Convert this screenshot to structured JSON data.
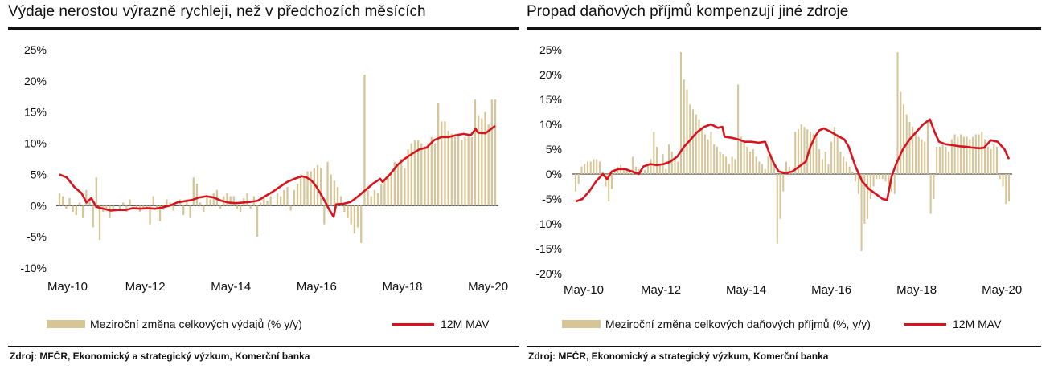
{
  "colors": {
    "bar": "#d6c596",
    "line": "#d7141e",
    "axis": "#888888",
    "text": "#111111"
  },
  "charts": [
    {
      "title": "Výdaje nerostou výrazně rychleji, než v předchozích měsících",
      "source": "Zdroj: MFČR, Ekonomický a strategický výzkum, Komerční banka",
      "legend": {
        "bar_label": "Meziroční změna celkových výdajů (% y/y)",
        "line_label": "12M MAV"
      }
    },
    {
      "title": "Propad daňových příjmů kompenzují jiné zdroje",
      "source": "Zdroj: MFČR, Ekonomický a strategický výzkum, Komerční banka",
      "legend": {
        "bar_label": "Meziroční změna celkových daňových příjmů (%, y/y)",
        "line_label": "12M MAV"
      }
    }
  ],
  "chart_data": [
    {
      "type": "bar",
      "title": "Výdaje nerostou výrazně rychleji, než v předchozích měsících",
      "x_ticks": [
        "May-10",
        "May-12",
        "May-14",
        "May-16",
        "May-18",
        "May-20"
      ],
      "y_ticks": [
        "25%",
        "20%",
        "15%",
        "10%",
        "5%",
        "0%",
        "-5%",
        "-10%"
      ],
      "ylim": [
        -10,
        25
      ],
      "y_tick_values": [
        25,
        20,
        15,
        10,
        5,
        0,
        -5,
        -10
      ],
      "x_range_months": [
        "May-10",
        "Jul-20"
      ],
      "series": [
        {
          "name": "Meziroční změna celkových výdajů (% y/y)",
          "kind": "bar",
          "values": [
            2.0,
            1.5,
            -0.5,
            1.2,
            -1.0,
            -1.5,
            0.5,
            -2.0,
            2.5,
            0.8,
            -3.5,
            4.5,
            -5.5,
            -1.0,
            -0.5,
            -2.0,
            -0.8,
            0.0,
            -0.5,
            0.5,
            -1.0,
            1.0,
            0.0,
            -0.5,
            -1.0,
            -0.3,
            -0.5,
            -3.0,
            1.5,
            -0.5,
            -2.5,
            -0.7,
            1.0,
            0.5,
            -0.8,
            0.0,
            1.0,
            -1.5,
            1.0,
            -2.0,
            4.5,
            3.5,
            0.5,
            -1.0,
            1.5,
            1.0,
            2.0,
            2.5,
            -0.5,
            1.5,
            2.0,
            1.5,
            1.5,
            -0.5,
            -1.0,
            1.2,
            2.0,
            -0.5,
            1.5,
            -5.0,
            0.5,
            1.2,
            0.8,
            1.5,
            0.0,
            2.0,
            1.5,
            2.5,
            3.0,
            -0.8,
            2.5,
            3.5,
            5.0,
            4.5,
            5.5,
            5.5,
            6.0,
            6.5,
            6.0,
            -3.0,
            7.0,
            5.0,
            4.0,
            3.0,
            1.5,
            -1.0,
            -2.0,
            -3.0,
            -4.5,
            -3.5,
            -6.0,
            21.0,
            2.5,
            1.5,
            2.5,
            2.0,
            3.5,
            4.0,
            5.0,
            5.5,
            7.0,
            6.5,
            7.5,
            6.0,
            9.0,
            10.0,
            10.5,
            10.5,
            10.0,
            9.5,
            10.0,
            11.0,
            10.0,
            16.5,
            13.5,
            13.5,
            12.0,
            11.5,
            11.0,
            11.5,
            10.5,
            11.0,
            11.5,
            11.0,
            17.0,
            14.5,
            14.0,
            15.0,
            13.0,
            17.0,
            17.0
          ]
        },
        {
          "name": "12M MAV",
          "kind": "line",
          "points": [
            [
              0,
              5.0
            ],
            [
              3,
              4.5
            ],
            [
              6,
              3.0
            ],
            [
              9,
              2.0
            ],
            [
              11,
              0.5
            ],
            [
              13,
              1.2
            ],
            [
              15,
              -0.2
            ],
            [
              18,
              -0.5
            ],
            [
              21,
              -0.8
            ],
            [
              24,
              -0.7
            ],
            [
              27,
              -0.7
            ],
            [
              30,
              -0.4
            ],
            [
              33,
              -0.5
            ],
            [
              36,
              -0.4
            ],
            [
              39,
              -0.5
            ],
            [
              42,
              -0.3
            ],
            [
              45,
              0.0
            ],
            [
              48,
              0.5
            ],
            [
              51,
              0.7
            ],
            [
              54,
              0.9
            ],
            [
              57,
              1.3
            ],
            [
              60,
              1.5
            ],
            [
              63,
              1.3
            ],
            [
              66,
              0.8
            ],
            [
              69,
              0.5
            ],
            [
              72,
              0.4
            ],
            [
              75,
              0.5
            ],
            [
              78,
              0.6
            ],
            [
              81,
              0.8
            ],
            [
              84,
              1.5
            ],
            [
              87,
              2.2
            ],
            [
              90,
              3.0
            ],
            [
              93,
              3.8
            ],
            [
              96,
              4.3
            ],
            [
              99,
              4.7
            ],
            [
              101,
              4.5
            ],
            [
              103,
              4.0
            ],
            [
              105,
              3.0
            ],
            [
              108,
              1.0
            ],
            [
              110,
              -0.5
            ],
            [
              112,
              -1.8
            ],
            [
              113,
              0.2
            ],
            [
              116,
              0.3
            ],
            [
              119,
              0.6
            ],
            [
              122,
              1.5
            ],
            [
              125,
              2.5
            ],
            [
              128,
              3.5
            ],
            [
              131,
              4.3
            ],
            [
              132,
              3.8
            ],
            [
              135,
              5.0
            ],
            [
              138,
              6.5
            ],
            [
              141,
              7.5
            ],
            [
              144,
              8.3
            ],
            [
              147,
              9.0
            ],
            [
              150,
              9.3
            ],
            [
              153,
              10.5
            ],
            [
              156,
              11.0
            ],
            [
              159,
              11.0
            ],
            [
              162,
              11.3
            ],
            [
              165,
              11.5
            ],
            [
              168,
              11.3
            ],
            [
              170,
              12.3
            ],
            [
              171,
              11.7
            ],
            [
              174,
              11.6
            ],
            [
              177,
              12.5
            ],
            [
              178,
              12.8
            ]
          ]
        }
      ]
    },
    {
      "type": "bar",
      "title": "Propad daňových příjmů kompenzují jiné zdroje",
      "x_ticks": [
        "May-10",
        "May-12",
        "May-14",
        "May-16",
        "May-18",
        "May-20"
      ],
      "y_ticks": [
        "25%",
        "20%",
        "15%",
        "10%",
        "5%",
        "0%",
        "-5%",
        "-10%",
        "-15%",
        "-20%"
      ],
      "ylim": [
        -20,
        25
      ],
      "y_tick_values": [
        25,
        20,
        15,
        10,
        5,
        0,
        -5,
        -10,
        -15,
        -20
      ],
      "x_range_months": [
        "May-10",
        "Jul-20"
      ],
      "series": [
        {
          "name": "Meziroční změna celkových daňových příjmů (%, y/y)",
          "kind": "bar",
          "values": [
            -3.5,
            -2.0,
            1.5,
            2.0,
            2.5,
            2.5,
            3.0,
            3.0,
            2.5,
            0.5,
            -2.5,
            -5.5,
            -3.0,
            1.0,
            1.5,
            1.8,
            1.2,
            0.8,
            0.5,
            3.5,
            1.5,
            1.0,
            0.5,
            0.8,
            2.0,
            3.0,
            8.5,
            5.5,
            2.0,
            4.0,
            1.0,
            6.0,
            4.5,
            3.5,
            2.5,
            24.5,
            19.0,
            17.0,
            14.0,
            13.0,
            12.0,
            11.0,
            9.0,
            8.0,
            7.0,
            8.5,
            6.0,
            5.5,
            4.5,
            4.0,
            3.5,
            2.0,
            3.5,
            3.0,
            18.0,
            7.5,
            6.5,
            5.5,
            4.5,
            5.0,
            3.5,
            2.5,
            2.0,
            1.0,
            3.5,
            4.0,
            2.0,
            -14.0,
            -9.0,
            -3.5,
            2.5,
            1.5,
            0.5,
            8.5,
            9.0,
            10.0,
            9.5,
            9.0,
            8.5,
            8.0,
            7.5,
            5.0,
            3.0,
            4.5,
            2.0,
            6.5,
            9.5,
            8.0,
            4.5,
            3.5,
            2.5,
            1.5,
            0.5,
            -1.5,
            -4.0,
            -15.5,
            -10.0,
            -9.0,
            -5.0,
            -2.5,
            -1.0,
            -1.0,
            -1.0,
            -1.5,
            -2.0,
            -3.5,
            -4.0,
            24.5,
            16.5,
            14.0,
            12.0,
            10.5,
            9.5,
            8.5,
            7.5,
            7.0,
            6.5,
            10.5,
            -8.0,
            -5.0,
            5.5,
            5.5,
            6.0,
            5.5,
            4.5,
            7.0,
            8.0,
            7.5,
            8.0,
            7.5,
            7.5,
            7.0,
            7.5,
            8.0,
            8.0,
            8.5,
            7.0,
            5.5,
            5.0,
            6.0,
            5.5,
            -1.0,
            -2.5,
            -6.0,
            -5.5
          ]
        },
        {
          "name": "12M MAV",
          "kind": "line",
          "points": [
            [
              0,
              -5.5
            ],
            [
              3,
              -5.0
            ],
            [
              6,
              -3.5
            ],
            [
              9,
              -1.5
            ],
            [
              12,
              0.0
            ],
            [
              14,
              -1.0
            ],
            [
              16,
              0.5
            ],
            [
              19,
              1.0
            ],
            [
              22,
              1.0
            ],
            [
              25,
              0.5
            ],
            [
              28,
              0.0
            ],
            [
              30,
              1.5
            ],
            [
              33,
              2.0
            ],
            [
              36,
              1.8
            ],
            [
              39,
              2.0
            ],
            [
              42,
              2.5
            ],
            [
              45,
              3.5
            ],
            [
              48,
              5.5
            ],
            [
              51,
              7.0
            ],
            [
              54,
              8.5
            ],
            [
              57,
              9.5
            ],
            [
              60,
              10.0
            ],
            [
              63,
              9.3
            ],
            [
              65,
              9.5
            ],
            [
              66,
              7.5
            ],
            [
              69,
              7.3
            ],
            [
              72,
              7.0
            ],
            [
              75,
              6.5
            ],
            [
              78,
              6.5
            ],
            [
              81,
              6.3
            ],
            [
              84,
              6.5
            ],
            [
              86,
              4.0
            ],
            [
              88,
              2.0
            ],
            [
              90,
              0.5
            ],
            [
              93,
              0.2
            ],
            [
              96,
              0.5
            ],
            [
              99,
              1.5
            ],
            [
              102,
              2.5
            ],
            [
              104,
              5.5
            ],
            [
              106,
              7.5
            ],
            [
              108,
              8.8
            ],
            [
              110,
              9.2
            ],
            [
              113,
              8.5
            ],
            [
              116,
              7.7
            ],
            [
              119,
              7.0
            ],
            [
              121,
              5.5
            ],
            [
              124,
              1.5
            ],
            [
              127,
              -1.5
            ],
            [
              130,
              -3.0
            ],
            [
              133,
              -4.0
            ],
            [
              136,
              -5.0
            ],
            [
              138,
              -5.2
            ],
            [
              140,
              -0.5
            ],
            [
              142,
              2.0
            ],
            [
              145,
              5.0
            ],
            [
              148,
              7.0
            ],
            [
              151,
              8.5
            ],
            [
              154,
              10.0
            ],
            [
              157,
              11.0
            ],
            [
              159,
              8.5
            ],
            [
              161,
              6.5
            ],
            [
              164,
              6.0
            ],
            [
              167,
              5.8
            ],
            [
              170,
              5.6
            ],
            [
              173,
              5.5
            ],
            [
              176,
              5.3
            ],
            [
              179,
              5.2
            ],
            [
              181,
              5.3
            ],
            [
              184,
              6.8
            ],
            [
              187,
              6.5
            ],
            [
              190,
              5.0
            ],
            [
              192,
              3.0
            ]
          ]
        }
      ]
    }
  ]
}
